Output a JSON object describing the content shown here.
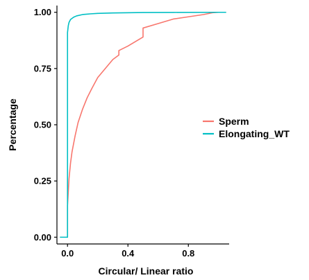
{
  "chart_data": {
    "type": "line",
    "subtype": "ecdf",
    "xlabel": "Circular/ Linear ratio",
    "ylabel": "Percentage",
    "xlim": [
      -0.07,
      1.07
    ],
    "ylim": [
      -0.03,
      1.03
    ],
    "x_ticks": [
      {
        "value": 0.0,
        "label": "0.0"
      },
      {
        "value": 0.4,
        "label": "0.4"
      },
      {
        "value": 0.8,
        "label": "0.8"
      }
    ],
    "y_ticks": [
      {
        "value": 0.0,
        "label": "0.00"
      },
      {
        "value": 0.25,
        "label": "0.25"
      },
      {
        "value": 0.5,
        "label": "0.50"
      },
      {
        "value": 0.75,
        "label": "0.75"
      },
      {
        "value": 1.0,
        "label": "1.00"
      }
    ],
    "grid": false,
    "legend_position": "right",
    "series": [
      {
        "name": "Sperm",
        "color": "#F8766D",
        "x": [
          -0.05,
          0.0,
          0.0,
          0.005,
          0.01,
          0.02,
          0.03,
          0.05,
          0.07,
          0.1,
          0.13,
          0.16,
          0.2,
          0.25,
          0.3,
          0.34,
          0.34,
          0.4,
          0.45,
          0.5,
          0.5,
          0.6,
          0.7,
          0.8,
          0.9,
          0.96,
          1.0,
          1.05
        ],
        "y": [
          0.0,
          0.0,
          0.14,
          0.2,
          0.26,
          0.33,
          0.38,
          0.45,
          0.51,
          0.57,
          0.62,
          0.66,
          0.71,
          0.75,
          0.79,
          0.81,
          0.83,
          0.85,
          0.87,
          0.89,
          0.93,
          0.95,
          0.97,
          0.98,
          0.99,
          0.998,
          1.0,
          1.0
        ]
      },
      {
        "name": "Elongating_WT",
        "color": "#00BFC4",
        "x": [
          -0.05,
          0.0,
          0.0,
          0.005,
          0.01,
          0.02,
          0.04,
          0.06,
          0.1,
          0.15,
          0.2,
          0.3,
          0.5,
          0.7,
          1.0,
          1.05
        ],
        "y": [
          0.0,
          0.0,
          0.91,
          0.94,
          0.955,
          0.968,
          0.978,
          0.984,
          0.99,
          0.993,
          0.995,
          0.997,
          0.999,
          0.9995,
          1.0,
          1.0
        ]
      }
    ]
  }
}
